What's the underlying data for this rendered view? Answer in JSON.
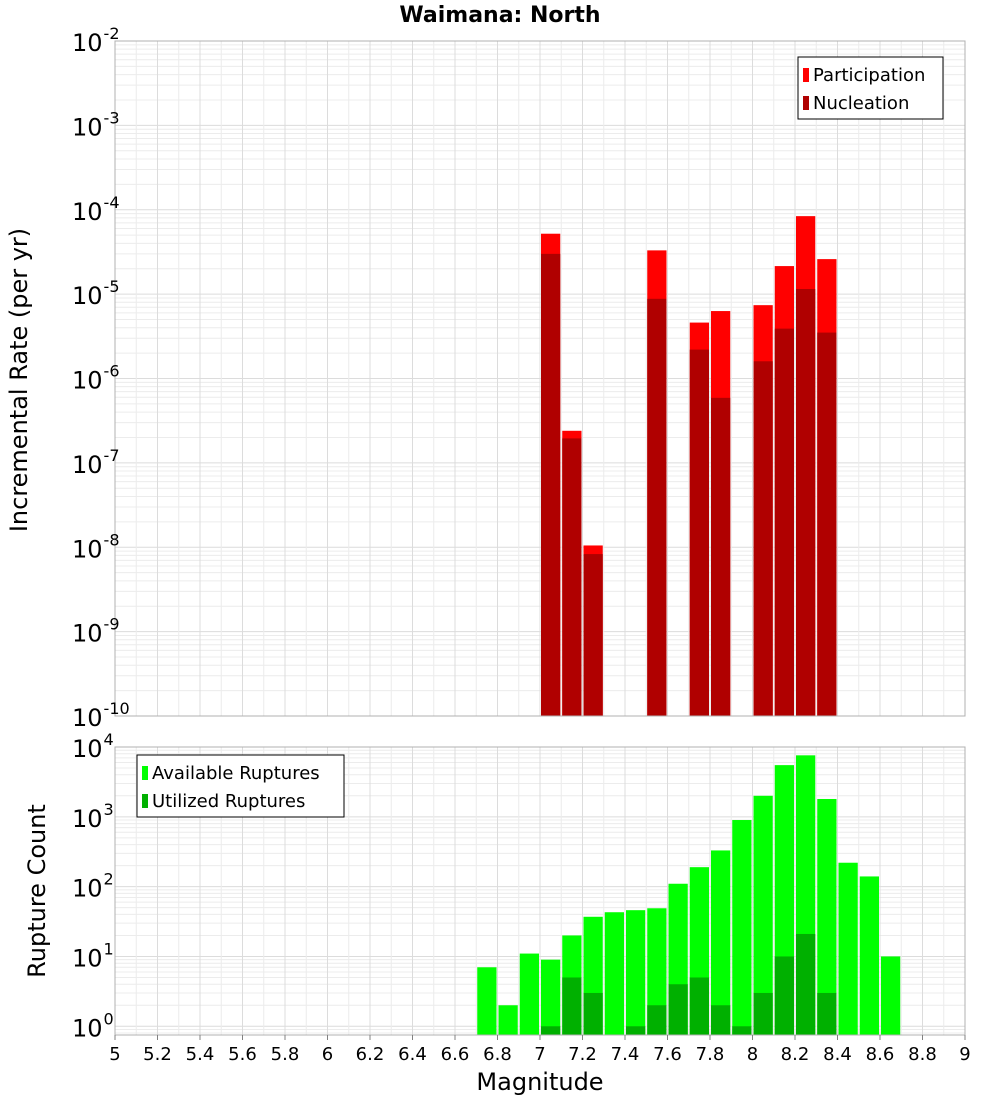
{
  "chart_data": [
    {
      "type": "bar",
      "title": "Waimana: North",
      "xlabel": "",
      "ylabel": "Incremental Rate (per yr)",
      "xlim": [
        5,
        9
      ],
      "ylim": [
        1e-10,
        0.01
      ],
      "yscale": "log",
      "ytick_exponents": [
        -10,
        -9,
        -8,
        -7,
        -6,
        -5,
        -4,
        -3,
        -2
      ],
      "grid": true,
      "legend_position": "top-right",
      "bar_width": 0.1,
      "series": [
        {
          "name": "Participation",
          "color": "#ff0000",
          "x": [
            7.05,
            7.15,
            7.25,
            7.55,
            7.75,
            7.85,
            8.05,
            8.15,
            8.25,
            8.35
          ],
          "values": [
            5.2e-05,
            2.4e-07,
            1.05e-08,
            3.3e-05,
            4.6e-06,
            6.3e-06,
            7.4e-06,
            2.15e-05,
            8.4e-05,
            2.6e-05
          ]
        },
        {
          "name": "Nucleation",
          "color": "#b00000",
          "x": [
            7.05,
            7.15,
            7.25,
            7.55,
            7.75,
            7.85,
            8.05,
            8.15,
            8.25,
            8.35
          ],
          "values": [
            3e-05,
            1.95e-07,
            8.3e-09,
            8.8e-06,
            2.2e-06,
            5.9e-07,
            1.6e-06,
            3.9e-06,
            1.15e-05,
            3.5e-06
          ]
        }
      ]
    },
    {
      "type": "bar",
      "xlabel": "Magnitude",
      "ylabel": "Rupture Count",
      "xlim": [
        5,
        9
      ],
      "ylim": [
        0.75,
        10000
      ],
      "yscale": "log",
      "ytick_exponents": [
        0,
        1,
        2,
        3,
        4
      ],
      "xticks": [
        "5",
        "5.2",
        "5.4",
        "5.6",
        "5.8",
        "6",
        "6.2",
        "6.4",
        "6.6",
        "6.8",
        "7",
        "7.2",
        "7.4",
        "7.6",
        "7.8",
        "8",
        "8.2",
        "8.4",
        "8.6",
        "8.8",
        "9"
      ],
      "grid": true,
      "legend_position": "top-left",
      "bar_width": 0.1,
      "series": [
        {
          "name": "Available Ruptures",
          "color": "#00ff00",
          "x": [
            6.75,
            6.85,
            6.95,
            7.05,
            7.15,
            7.25,
            7.35,
            7.45,
            7.55,
            7.65,
            7.75,
            7.85,
            7.95,
            8.05,
            8.15,
            8.25,
            8.35,
            8.45,
            8.55,
            8.65
          ],
          "values": [
            7,
            2,
            11,
            9,
            20,
            37,
            43,
            46,
            49,
            110,
            190,
            330,
            900,
            2000,
            5500,
            7600,
            1800,
            220,
            140,
            10
          ]
        },
        {
          "name": "Utilized Ruptures",
          "color": "#00b000",
          "x": [
            7.05,
            7.15,
            7.25,
            7.45,
            7.55,
            7.65,
            7.75,
            7.85,
            7.95,
            8.05,
            8.15,
            8.25,
            8.35
          ],
          "values": [
            1,
            5,
            3,
            1,
            2,
            4,
            5,
            2,
            1,
            3,
            10,
            21,
            3
          ]
        }
      ]
    }
  ]
}
